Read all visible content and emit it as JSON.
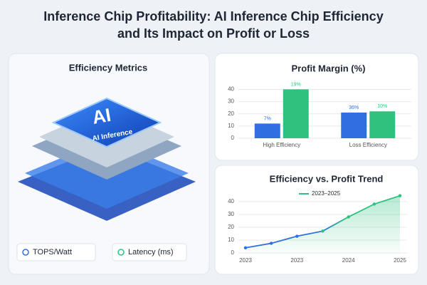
{
  "header": {
    "title_line1": "Inference Chip Profitability: AI Inference Chip Efficiency",
    "title_line2": "and Its Impact on Profit or Loss"
  },
  "left_panel": {
    "title": "Efficiency Metrics",
    "chip_label": "AI",
    "chip_sublabel": "AI Inference",
    "buttons": [
      "TOPS/Watt",
      "Latency (ms)"
    ]
  },
  "chart_data": [
    {
      "type": "bar",
      "title": "Profit Margin (%)",
      "categories": [
        "High Efficiency",
        "Loss Efficiency"
      ],
      "series": [
        {
          "color": "#2f6fe0",
          "values": [
            12,
            21
          ]
        },
        {
          "color": "#2ec27e",
          "values": [
            40,
            22
          ]
        }
      ],
      "annotations": [
        "7%",
        "19%",
        "36%",
        "10%"
      ],
      "ylim": [
        0,
        42
      ],
      "yticks": [
        0,
        10,
        20,
        30,
        40
      ],
      "grid": true
    },
    {
      "type": "line",
      "title": "Efficiency vs. Profit Trend",
      "categories": [
        "2023",
        null,
        "2023",
        null,
        "2024",
        null,
        "2025"
      ],
      "series": [
        {
          "name": "2023–2025",
          "color": "#2ec27e",
          "values": [
            4,
            7.5,
            13,
            17,
            28,
            38,
            44.5
          ]
        }
      ],
      "ylim": [
        0,
        46
      ],
      "yticks": [
        0,
        10,
        20,
        30,
        40
      ],
      "grid": true,
      "area": true
    }
  ]
}
